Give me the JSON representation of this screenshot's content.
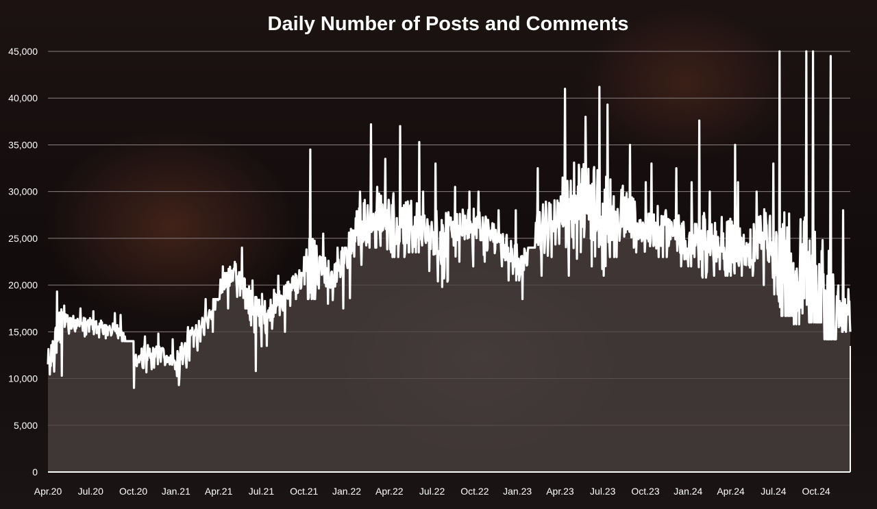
{
  "chart_data": {
    "type": "area",
    "title": "Daily Number of Posts and Comments",
    "xlabel": "",
    "ylabel": "",
    "ylim": [
      0,
      45000
    ],
    "yticks": [
      0,
      5000,
      10000,
      15000,
      20000,
      25000,
      30000,
      35000,
      40000,
      45000
    ],
    "ytick_labels": [
      "0",
      "5,000",
      "10,000",
      "15,000",
      "20,000",
      "25,000",
      "30,000",
      "35,000",
      "40,000",
      "45,000"
    ],
    "xtick_labels": [
      "Apr.20",
      "Jul.20",
      "Oct.20",
      "Jan.21",
      "Apr.21",
      "Jul.21",
      "Oct.21",
      "Jan.22",
      "Apr.22",
      "Jul.22",
      "Oct.22",
      "Jan.23",
      "Apr.23",
      "Jul.23",
      "Oct.23",
      "Jan.24",
      "Apr.24",
      "Jul.24",
      "Oct.24"
    ],
    "grid": true,
    "legend": "none",
    "colors": {
      "line": "#ffffff",
      "area": "#4a4140",
      "grid": "#8a8080"
    },
    "series": [
      {
        "name": "",
        "x": [
          "Apr.20",
          "May.20",
          "Jun.20",
          "Jul.20",
          "Aug.20",
          "Sep.20",
          "Oct.20",
          "Nov.20",
          "Dec.20",
          "Jan.21",
          "Feb.21",
          "Mar.21",
          "Apr.21",
          "May.21",
          "Jun.21",
          "Jul.21",
          "Aug.21",
          "Sep.21",
          "Oct.21",
          "Nov.21",
          "Dec.21",
          "Jan.22",
          "Feb.22",
          "Mar.22",
          "Apr.22",
          "May.22",
          "Jun.22",
          "Jul.22",
          "Aug.22",
          "Sep.22",
          "Oct.22",
          "Nov.22",
          "Dec.22",
          "Jan.23",
          "Feb.23",
          "Mar.23",
          "Apr.23",
          "May.23",
          "Jun.23",
          "Jul.23",
          "Aug.23",
          "Sep.23",
          "Oct.23",
          "Nov.23",
          "Dec.23",
          "Jan.24",
          "Feb.24",
          "Mar.24",
          "Apr.24",
          "May.24",
          "Jun.24",
          "Jul.24",
          "Aug.24",
          "Sep.24",
          "Oct.24",
          "Nov.24"
        ],
        "values": [
          11000,
          16500,
          16000,
          15800,
          15500,
          15200,
          12000,
          12500,
          12800,
          11500,
          14500,
          16000,
          20000,
          21500,
          18500,
          17000,
          18000,
          20000,
          21500,
          21500,
          21000,
          24500,
          27000,
          28000,
          27500,
          27000,
          26000,
          25500,
          25500,
          26500,
          26500,
          25500,
          24000,
          22500,
          25500,
          27000,
          28000,
          30000,
          29000,
          28000,
          28500,
          26500,
          26000,
          26500,
          25500,
          24000,
          25000,
          24500,
          24500,
          24000,
          26000,
          22000,
          22000,
          21000,
          19000,
          18000
        ],
        "highs": [
          19300,
          17800,
          17500,
          17200,
          17000,
          16800,
          14500,
          14800,
          14200,
          15500,
          17000,
          18500,
          22000,
          24000,
          20500,
          19500,
          21000,
          23000,
          34500,
          25500,
          24000,
          30000,
          37200,
          33500,
          37000,
          35300,
          30000,
          33000,
          30500,
          30000,
          30000,
          28000,
          28000,
          24000,
          32500,
          31500,
          41000,
          38000,
          41200,
          39300,
          35000,
          31000,
          33000,
          32500,
          31000,
          37600,
          30000,
          35000,
          31000,
          30000,
          33000,
          45000,
          45000,
          45000,
          44500,
          28000
        ],
        "lows": [
          10300,
          14800,
          14500,
          14400,
          14300,
          14000,
          9000,
          11000,
          11000,
          9300,
          13000,
          15000,
          17500,
          17500,
          10800,
          13500,
          15000,
          18500,
          18500,
          18000,
          17500,
          18600,
          24000,
          23500,
          23000,
          23500,
          21500,
          19800,
          22500,
          22000,
          22500,
          22000,
          20500,
          18500,
          21000,
          23000,
          21000,
          22000,
          21000,
          23000,
          24000,
          23500,
          23000,
          23000,
          22000,
          20800,
          21000,
          21000,
          21000,
          20000,
          19000,
          16700,
          15800,
          16000,
          14200,
          15000
        ]
      }
    ]
  }
}
